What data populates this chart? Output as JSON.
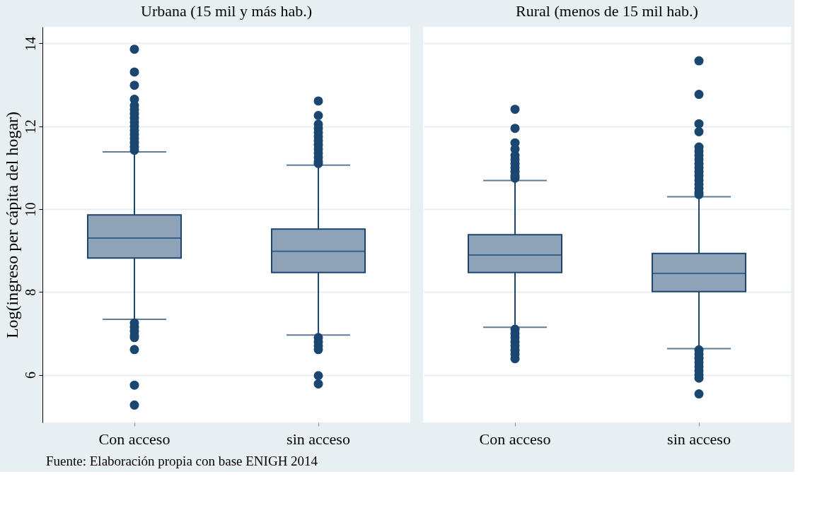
{
  "chart_data": [
    {
      "type": "box",
      "title": "Urbana (15 mil y más hab.)",
      "ylabel": "Log(ingreso per cápita del hogar)",
      "categories": [
        "Con acceso",
        "sin acceso"
      ],
      "ylim": [
        4.85,
        14.4
      ],
      "yticks": [
        6,
        8,
        10,
        12,
        14
      ],
      "grid": "y",
      "annotations": [
        "Fuente: Elaboración propia con base ENIGH 2014"
      ],
      "series": [
        {
          "color": "#8fa3b8",
          "boxes": [
            {
              "low": 7.34,
              "q1": 8.82,
              "median": 9.3,
              "q3": 9.86,
              "high": 11.38,
              "outliers": [
                13.86,
                13.31,
                12.99,
                12.65,
                12.5,
                12.4,
                12.3,
                12.2,
                12.1,
                12.0,
                11.9,
                11.8,
                11.7,
                11.6,
                11.5,
                11.42,
                7.25,
                7.15,
                7.05,
                6.95,
                6.9,
                6.61,
                5.75,
                5.27
              ]
            },
            {
              "low": 6.96,
              "q1": 8.47,
              "median": 8.98,
              "q3": 9.52,
              "high": 11.06,
              "outliers": [
                12.61,
                12.26,
                12.05,
                11.95,
                11.85,
                11.75,
                11.65,
                11.55,
                11.45,
                11.35,
                11.25,
                11.15,
                11.1,
                6.9,
                6.8,
                6.7,
                6.61,
                5.98,
                5.78
              ]
            }
          ]
        }
      ]
    },
    {
      "type": "box",
      "title": "Rural (menos de 15 mil hab.)",
      "categories": [
        "Con acceso",
        "sin acceso"
      ],
      "ylim": [
        4.85,
        14.4
      ],
      "yticks": [
        6,
        8,
        10,
        12,
        14
      ],
      "grid": "y",
      "tick_labels": "x",
      "series": [
        {
          "color": "#8fa3b8",
          "boxes": [
            {
              "low": 7.15,
              "q1": 8.47,
              "median": 8.89,
              "q3": 9.38,
              "high": 10.69,
              "outliers": [
                12.41,
                11.95,
                11.6,
                11.45,
                11.3,
                11.2,
                11.1,
                11.0,
                10.9,
                10.8,
                10.75,
                7.1,
                7.0,
                6.9,
                6.8,
                6.7,
                6.6,
                6.5,
                6.39
              ]
            },
            {
              "low": 6.63,
              "q1": 8.01,
              "median": 8.45,
              "q3": 8.93,
              "high": 10.3,
              "outliers": [
                13.58,
                12.77,
                12.06,
                11.87,
                11.5,
                11.4,
                11.3,
                11.2,
                11.1,
                11.0,
                10.9,
                10.8,
                10.7,
                10.6,
                10.5,
                10.4,
                10.35,
                6.6,
                6.5,
                6.4,
                6.3,
                6.2,
                6.1,
                6.0,
                5.92,
                5.54
              ]
            }
          ]
        }
      ]
    }
  ]
}
